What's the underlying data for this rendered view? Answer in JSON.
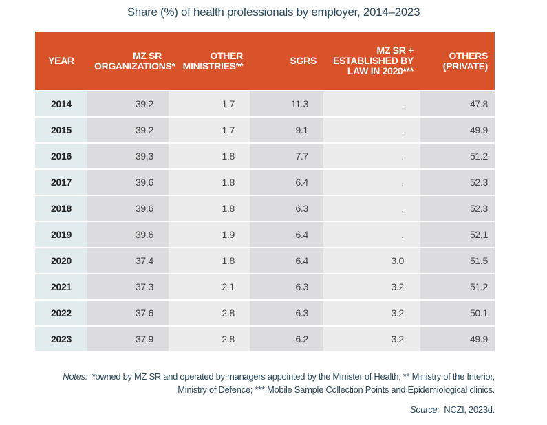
{
  "title": "Share (%) of health professionals by employer, 2014–2023",
  "headers": [
    "YEAR",
    "MZ SR ORGANIZATIONS*",
    "OTHER MINISTRIES**",
    "SGRS",
    "MZ SR + ESTABLISHED BY LAW IN 2020***",
    "OTHERS (PRIVATE)"
  ],
  "rows": [
    [
      "2014",
      "39.2",
      "1.7",
      "11.3",
      ".",
      "47.8"
    ],
    [
      "2015",
      "39.2",
      "1.7",
      "9.1",
      ".",
      "49.9"
    ],
    [
      "2016",
      "39,3",
      "1.8",
      "7.7",
      ".",
      "51.2"
    ],
    [
      "2017",
      "39.6",
      "1.8",
      "6.4",
      ".",
      "52.3"
    ],
    [
      "2018",
      "39.6",
      "1.8",
      "6.3",
      ".",
      "52.3"
    ],
    [
      "2019",
      "39.6",
      "1.9",
      "6.4",
      ".",
      "52.1"
    ],
    [
      "2020",
      "37.4",
      "1.8",
      "6.4",
      "3.0",
      "51.5"
    ],
    [
      "2021",
      "37.3",
      "2.1",
      "6.3",
      "3.2",
      "51.2"
    ],
    [
      "2022",
      "37.6",
      "2.8",
      "6.3",
      "3.2",
      "50.1"
    ],
    [
      "2023",
      "37.9",
      "2.8",
      "6.2",
      "3.2",
      "49.9"
    ]
  ],
  "notes_label": "Notes:",
  "notes_text": "*owned by MZ SR and operated by managers appointed by the Minister of Health; ** Ministry of the Interior, Ministry of Defence; *** Mobile Sample Collection Points and Epidemiological clinics.",
  "source_label": "Source:",
  "source_text": "NCZI, 2023d.",
  "colors": {
    "header": "#d9532a",
    "year_column": "#e2ecef"
  }
}
